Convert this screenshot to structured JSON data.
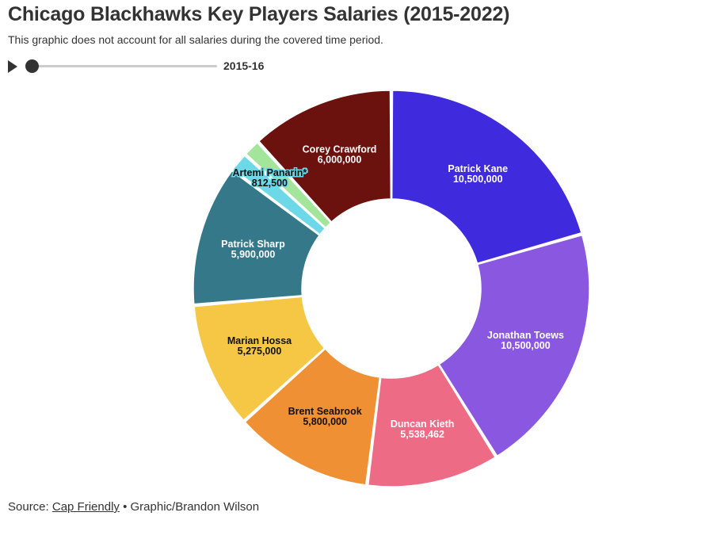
{
  "header": {
    "title": "Chicago Blackhawks Key Players Salaries (2015-2022)",
    "subtitle": "This graphic does not account for all salaries during the covered time period."
  },
  "timeline": {
    "play_icon": "play-icon",
    "current_label": "2015-16",
    "position": 0
  },
  "footer": {
    "source_prefix": "Source: ",
    "source_link": "Cap Friendly",
    "separator": " • ",
    "credit": "Graphic/Brandon Wilson"
  },
  "chart_data": {
    "type": "pie",
    "donut": true,
    "title": "Chicago Blackhawks Key Players Salaries (2015-2022)",
    "subtitle": "This graphic does not account for all salaries during the covered time period.",
    "slices": [
      {
        "label": "Patrick Kane",
        "value": 10500000,
        "display": "10,500,000",
        "color": "#3f2ade",
        "text_color": "#ffffff"
      },
      {
        "label": "Jonathan Toews",
        "value": 10500000,
        "display": "10,500,000",
        "color": "#8a57e0",
        "text_color": "#ffffff"
      },
      {
        "label": "Duncan Kieth",
        "value": 5538462,
        "display": "5,538,462",
        "color": "#ee6b86",
        "text_color": "#ffffff"
      },
      {
        "label": "Brent Seabrook",
        "value": 5800000,
        "display": "5,800,000",
        "color": "#f09035",
        "text_color": "#111111"
      },
      {
        "label": "Marian Hossa",
        "value": 5275000,
        "display": "5,275,000",
        "color": "#f5c744",
        "text_color": "#111111"
      },
      {
        "label": "Patrick Sharp",
        "value": 5900000,
        "display": "5,900,000",
        "color": "#35788a",
        "text_color": "#ffffff"
      },
      {
        "label": "Artemi Panarin*",
        "value": 812500,
        "display": "812,500",
        "color": "#6dd8e8",
        "text_color": "#111111"
      },
      {
        "label": "",
        "value": 742500,
        "display": "",
        "color": "#a3e59a",
        "text_color": "#111111"
      },
      {
        "label": "Corey Crawford",
        "value": 6000000,
        "display": "6,000,000",
        "color": "#6b110e",
        "text_color": "#ffffff"
      }
    ]
  }
}
